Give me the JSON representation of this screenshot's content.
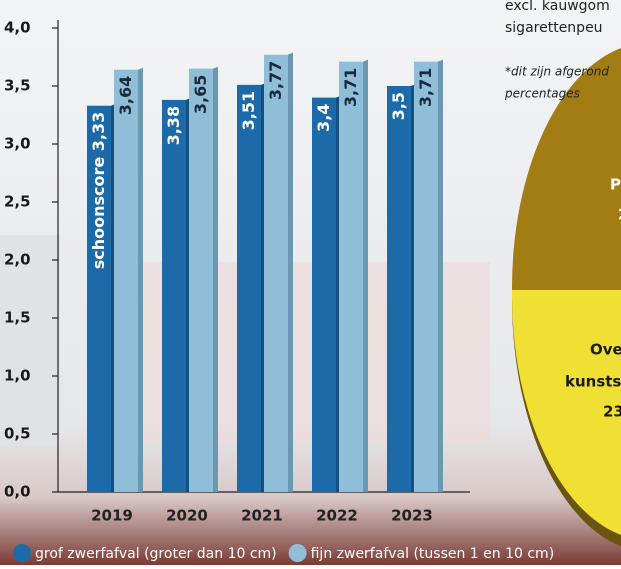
{
  "chart_data": {
    "type": "bar",
    "categories": [
      "2019",
      "2020",
      "2021",
      "2022",
      "2023"
    ],
    "series": [
      {
        "name": "grof zwerfafval (groter dan 10 cm)",
        "color": "#1d6aa8",
        "values": [
          3.33,
          3.38,
          3.51,
          3.4,
          3.5
        ],
        "value_labels": [
          "3,33",
          "3,38",
          "3,51",
          "3,4",
          "3,5"
        ]
      },
      {
        "name": "fijn zwerfafval (tussen 1 en 10 cm)",
        "color": "#8fbfd8",
        "values": [
          3.64,
          3.65,
          3.77,
          3.71,
          3.71
        ],
        "value_labels": [
          "3,64",
          "3,65",
          "3,77",
          "3,71",
          "3,71"
        ]
      }
    ],
    "annotation": "schoonscore",
    "ylim": [
      0,
      4
    ],
    "yticks": [
      {
        "value": 0,
        "label": "0,0"
      },
      {
        "value": 0.5,
        "label": "0,5"
      },
      {
        "value": 1,
        "label": "1,0"
      },
      {
        "value": 1.5,
        "label": "1,5"
      },
      {
        "value": 2,
        "label": "2,0"
      },
      {
        "value": 2.5,
        "label": "2,5"
      },
      {
        "value": 3,
        "label": "3,0"
      },
      {
        "value": 3.5,
        "label": "3,5"
      },
      {
        "value": 4,
        "label": "4,0"
      }
    ],
    "notes": [
      "excl. kauwgom",
      "sigarettenpeu",
      "*dit zijn afgerond",
      "percentages"
    ],
    "pie_fragment_labels": [
      "P",
      "2",
      "Ove",
      "kunsts",
      "23"
    ]
  }
}
